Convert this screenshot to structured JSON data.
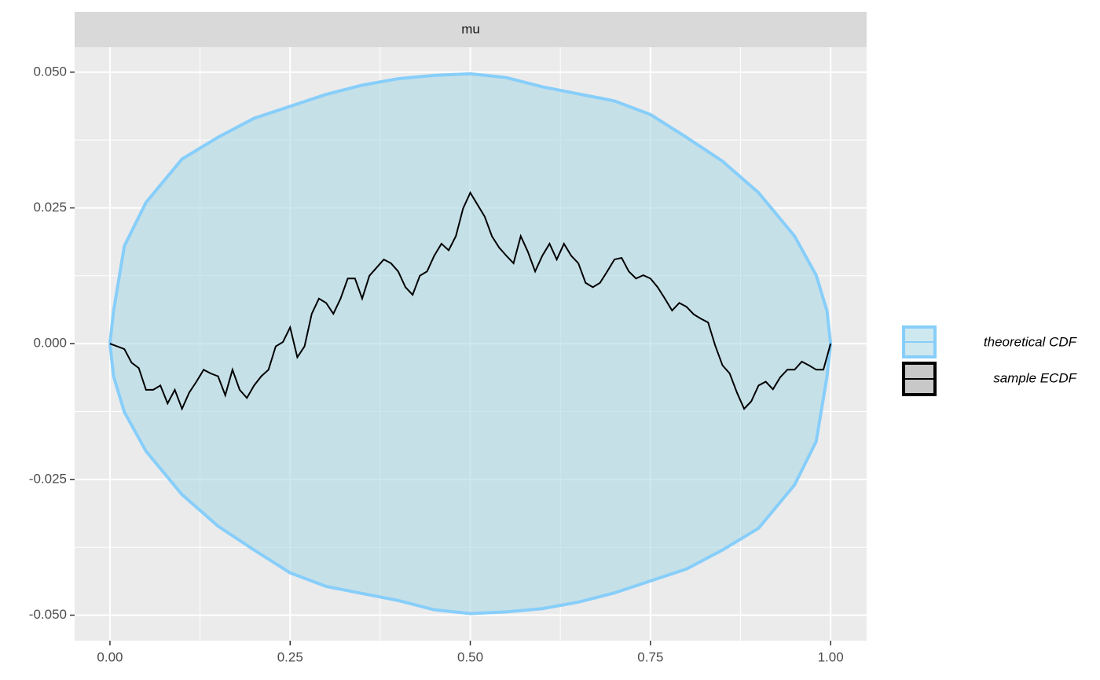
{
  "chart_data": {
    "type": "line",
    "strip": "mu",
    "xlim": [
      -0.049,
      1.05
    ],
    "ylim": [
      -0.0547,
      0.0546
    ],
    "xticks": [
      {
        "value": 0,
        "label": "0.00"
      },
      {
        "value": 0.25,
        "label": "0.25"
      },
      {
        "value": 0.5,
        "label": "0.50"
      },
      {
        "value": 0.75,
        "label": "0.75"
      },
      {
        "value": 1,
        "label": "1.00"
      }
    ],
    "yticks": [
      {
        "value": -0.05,
        "label": "-0.050"
      },
      {
        "value": -0.025,
        "label": "-0.025"
      },
      {
        "value": 0,
        "label": "0.000"
      },
      {
        "value": 0.025,
        "label": "0.025"
      },
      {
        "value": 0.05,
        "label": "0.050"
      }
    ],
    "minor_xticks": [
      0.125,
      0.375,
      0.625,
      0.875
    ],
    "minor_yticks": [
      -0.0375,
      -0.0125,
      0.0125,
      0.0375
    ],
    "grid": true,
    "band": {
      "name": "theoretical CDF",
      "color": "#87CEFA",
      "fill": "#add8e6",
      "x": [
        0,
        0.005,
        0.02,
        0.05,
        0.1,
        0.15,
        0.2,
        0.25,
        0.3,
        0.35,
        0.4,
        0.45,
        0.5,
        0.55,
        0.6,
        0.65,
        0.7,
        0.75,
        0.8,
        0.85,
        0.9,
        0.95,
        0.98,
        0.995,
        1
      ],
      "upper": [
        0,
        0.006,
        0.018,
        0.026,
        0.034,
        0.038,
        0.0415,
        0.0437,
        0.0459,
        0.0476,
        0.0488,
        0.0494,
        0.0497,
        0.049,
        0.0473,
        0.046,
        0.0447,
        0.0422,
        0.038,
        0.0336,
        0.0278,
        0.0198,
        0.0126,
        0.006,
        0
      ],
      "lower": [
        0,
        -0.006,
        -0.0126,
        -0.0198,
        -0.0278,
        -0.0336,
        -0.038,
        -0.0422,
        -0.0447,
        -0.046,
        -0.0473,
        -0.049,
        -0.0497,
        -0.0494,
        -0.0488,
        -0.0476,
        -0.0459,
        -0.0437,
        -0.0415,
        -0.038,
        -0.034,
        -0.026,
        -0.018,
        -0.006,
        0
      ]
    },
    "series": [
      {
        "name": "sample ECDF",
        "color": "#000000",
        "x": [
          0,
          0.01,
          0.02,
          0.03,
          0.04,
          0.05,
          0.06,
          0.07,
          0.08,
          0.09,
          0.1,
          0.11,
          0.12,
          0.13,
          0.14,
          0.15,
          0.16,
          0.17,
          0.18,
          0.19,
          0.2,
          0.21,
          0.22,
          0.23,
          0.24,
          0.25,
          0.26,
          0.27,
          0.28,
          0.29,
          0.3,
          0.31,
          0.32,
          0.33,
          0.34,
          0.35,
          0.36,
          0.37,
          0.38,
          0.39,
          0.4,
          0.41,
          0.42,
          0.43,
          0.44,
          0.45,
          0.46,
          0.47,
          0.48,
          0.49,
          0.5,
          0.51,
          0.52,
          0.53,
          0.54,
          0.55,
          0.56,
          0.57,
          0.58,
          0.59,
          0.6,
          0.61,
          0.62,
          0.63,
          0.64,
          0.65,
          0.66,
          0.67,
          0.68,
          0.69,
          0.7,
          0.71,
          0.72,
          0.73,
          0.74,
          0.75,
          0.76,
          0.77,
          0.78,
          0.79,
          0.8,
          0.81,
          0.82,
          0.83,
          0.84,
          0.85,
          0.86,
          0.87,
          0.88,
          0.89,
          0.9,
          0.91,
          0.92,
          0.93,
          0.94,
          0.95,
          0.96,
          0.97,
          0.98,
          0.99,
          1
        ],
        "values": [
          0,
          -0.0005,
          -0.001,
          -0.0035,
          -0.0045,
          -0.0085,
          -0.0085,
          -0.0077,
          -0.011,
          -0.0085,
          -0.012,
          -0.009,
          -0.007,
          -0.0048,
          -0.0055,
          -0.006,
          -0.0095,
          -0.0048,
          -0.0085,
          -0.01,
          -0.0077,
          -0.006,
          -0.0048,
          -0.0005,
          0.0003,
          0.003,
          -0.0025,
          -0.0005,
          0.0055,
          0.0083,
          0.0075,
          0.0055,
          0.0083,
          0.012,
          0.012,
          0.0083,
          0.0125,
          0.014,
          0.0155,
          0.0148,
          0.0133,
          0.0104,
          0.009,
          0.0125,
          0.0133,
          0.0162,
          0.0184,
          0.0172,
          0.0198,
          0.0249,
          0.0278,
          0.0256,
          0.0234,
          0.0198,
          0.0177,
          0.0162,
          0.0148,
          0.0198,
          0.0169,
          0.0133,
          0.0162,
          0.0184,
          0.0155,
          0.0184,
          0.0162,
          0.0148,
          0.0112,
          0.0104,
          0.0112,
          0.0133,
          0.0155,
          0.0158,
          0.0133,
          0.012,
          0.0126,
          0.012,
          0.0104,
          0.0083,
          0.0061,
          0.0075,
          0.0068,
          0.0054,
          0.0046,
          0.0039,
          -0.0004,
          -0.004,
          -0.0055,
          -0.009,
          -0.012,
          -0.0106,
          -0.0077,
          -0.007,
          -0.0084,
          -0.0062,
          -0.0048,
          -0.0048,
          -0.0033,
          -0.004,
          -0.0048,
          -0.0048,
          0
        ]
      }
    ]
  }
}
